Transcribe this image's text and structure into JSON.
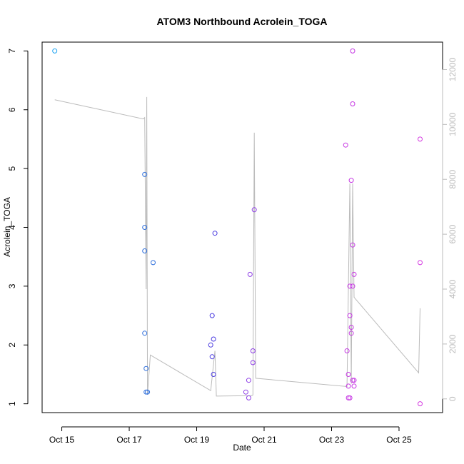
{
  "chart_data": {
    "type": "scatter",
    "title": "ATOM3 Northbound Acrolein_TOGA",
    "xlabel": "Date",
    "ylabel": "Acrolein_TOGA",
    "x_axis": {
      "type": "date",
      "range": [
        "2017-10-14T10:00",
        "2017-10-26T07:00"
      ],
      "ticks": [
        {
          "value": "2017-10-15",
          "label": "Oct 15"
        },
        {
          "value": "2017-10-17",
          "label": "Oct 17"
        },
        {
          "value": "2017-10-19",
          "label": "Oct 19"
        },
        {
          "value": "2017-10-21",
          "label": "Oct 21"
        },
        {
          "value": "2017-10-23",
          "label": "Oct 23"
        },
        {
          "value": "2017-10-25",
          "label": "Oct 25"
        }
      ]
    },
    "y_axis": {
      "range": [
        0.85,
        7.15
      ],
      "ticks": [
        1,
        2,
        3,
        4,
        5,
        6,
        7
      ]
    },
    "y2_axis": {
      "range": [
        -500,
        13000
      ],
      "ticks": [
        0,
        2000,
        4000,
        6000,
        8000,
        10000,
        12000
      ],
      "color": "#bbbbbb"
    },
    "points": [
      {
        "x": "2017-10-14T19:00",
        "y": 7.0,
        "color": "#1ca3f2"
      },
      {
        "x": "2017-10-17T11:00",
        "y": 4.9,
        "color": "#2e6fdc"
      },
      {
        "x": "2017-10-17T11:00",
        "y": 4.0,
        "color": "#2e6fdc"
      },
      {
        "x": "2017-10-17T11:00",
        "y": 3.6,
        "color": "#2e6fdc"
      },
      {
        "x": "2017-10-17T11:00",
        "y": 2.2,
        "color": "#2e6fdc"
      },
      {
        "x": "2017-10-17T12:00",
        "y": 1.6,
        "color": "#2e6fdc"
      },
      {
        "x": "2017-10-17T12:00",
        "y": 1.2,
        "color": "#2e6fdc"
      },
      {
        "x": "2017-10-17T13:00",
        "y": 1.2,
        "color": "#2e6fdc"
      },
      {
        "x": "2017-10-17T17:00",
        "y": 3.4,
        "color": "#2e6fdc"
      },
      {
        "x": "2017-10-19T10:00",
        "y": 2.0,
        "color": "#4a3be0"
      },
      {
        "x": "2017-10-19T11:00",
        "y": 2.5,
        "color": "#4a3be0"
      },
      {
        "x": "2017-10-19T11:00",
        "y": 1.8,
        "color": "#4a3be0"
      },
      {
        "x": "2017-10-19T12:00",
        "y": 2.1,
        "color": "#4a3be0"
      },
      {
        "x": "2017-10-19T12:00",
        "y": 1.5,
        "color": "#4a3be0"
      },
      {
        "x": "2017-10-19T13:00",
        "y": 3.9,
        "color": "#4a3be0"
      },
      {
        "x": "2017-10-20T11:00",
        "y": 1.2,
        "color": "#8d3ce6"
      },
      {
        "x": "2017-10-20T13:00",
        "y": 1.1,
        "color": "#8d3ce6"
      },
      {
        "x": "2017-10-20T13:00",
        "y": 1.4,
        "color": "#8d3ce6"
      },
      {
        "x": "2017-10-20T14:00",
        "y": 3.2,
        "color": "#8d3ce6"
      },
      {
        "x": "2017-10-20T16:00",
        "y": 1.7,
        "color": "#8d3ce6"
      },
      {
        "x": "2017-10-20T16:00",
        "y": 1.9,
        "color": "#8d3ce6"
      },
      {
        "x": "2017-10-20T17:00",
        "y": 4.3,
        "color": "#8d3ce6"
      },
      {
        "x": "2017-10-23T10:00",
        "y": 5.4,
        "color": "#c637e3"
      },
      {
        "x": "2017-10-23T11:00",
        "y": 1.9,
        "color": "#c637e3"
      },
      {
        "x": "2017-10-23T12:00",
        "y": 1.5,
        "color": "#c637e3"
      },
      {
        "x": "2017-10-23T12:00",
        "y": 1.1,
        "color": "#c637e3"
      },
      {
        "x": "2017-10-23T12:00",
        "y": 1.3,
        "color": "#c637e3"
      },
      {
        "x": "2017-10-23T13:00",
        "y": 2.5,
        "color": "#c637e3"
      },
      {
        "x": "2017-10-23T13:00",
        "y": 3.0,
        "color": "#c637e3"
      },
      {
        "x": "2017-10-23T13:00",
        "y": 1.1,
        "color": "#c637e3"
      },
      {
        "x": "2017-10-23T14:00",
        "y": 2.3,
        "color": "#c637e3"
      },
      {
        "x": "2017-10-23T14:00",
        "y": 4.8,
        "color": "#c637e3"
      },
      {
        "x": "2017-10-23T14:00",
        "y": 2.2,
        "color": "#c637e3"
      },
      {
        "x": "2017-10-23T15:00",
        "y": 7.0,
        "color": "#c637e3"
      },
      {
        "x": "2017-10-23T15:00",
        "y": 6.1,
        "color": "#c637e3"
      },
      {
        "x": "2017-10-23T15:00",
        "y": 3.7,
        "color": "#c637e3"
      },
      {
        "x": "2017-10-23T15:00",
        "y": 3.0,
        "color": "#c637e3"
      },
      {
        "x": "2017-10-23T15:00",
        "y": 1.4,
        "color": "#c637e3"
      },
      {
        "x": "2017-10-23T16:00",
        "y": 1.4,
        "color": "#c637e3"
      },
      {
        "x": "2017-10-23T16:00",
        "y": 3.2,
        "color": "#c637e3"
      },
      {
        "x": "2017-10-23T16:00",
        "y": 1.3,
        "color": "#c637e3"
      },
      {
        "x": "2017-10-25T15:00",
        "y": 5.5,
        "color": "#d43ae0"
      },
      {
        "x": "2017-10-25T15:00",
        "y": 3.4,
        "color": "#d43ae0"
      },
      {
        "x": "2017-10-25T15:00",
        "y": 1.0,
        "color": "#d43ae0"
      }
    ],
    "line_series": {
      "axis": "y2",
      "color": "#bbbbbb",
      "points": [
        {
          "x": "2017-10-14T19:00",
          "y": 10900
        },
        {
          "x": "2017-10-17T10:00",
          "y": 10200
        },
        {
          "x": "2017-10-17T11:00",
          "y": 10250
        },
        {
          "x": "2017-10-17T12:00",
          "y": 4000
        },
        {
          "x": "2017-10-17T12:30",
          "y": 11000
        },
        {
          "x": "2017-10-17T13:00",
          "y": 150
        },
        {
          "x": "2017-10-17T15:00",
          "y": 1600
        },
        {
          "x": "2017-10-19T10:00",
          "y": 300
        },
        {
          "x": "2017-10-19T13:00",
          "y": 1750
        },
        {
          "x": "2017-10-19T14:00",
          "y": 100
        },
        {
          "x": "2017-10-20T15:00",
          "y": 120
        },
        {
          "x": "2017-10-20T16:00",
          "y": 140
        },
        {
          "x": "2017-10-20T17:00",
          "y": 9700
        },
        {
          "x": "2017-10-20T18:00",
          "y": 750
        },
        {
          "x": "2017-10-23T11:00",
          "y": 450
        },
        {
          "x": "2017-10-23T13:00",
          "y": 7850
        },
        {
          "x": "2017-10-23T14:00",
          "y": 550
        },
        {
          "x": "2017-10-23T15:00",
          "y": 7850
        },
        {
          "x": "2017-10-23T16:00",
          "y": 3700
        },
        {
          "x": "2017-10-25T14:00",
          "y": 950
        },
        {
          "x": "2017-10-25T15:00",
          "y": 3300
        }
      ]
    },
    "grid": false,
    "legend": "none"
  }
}
